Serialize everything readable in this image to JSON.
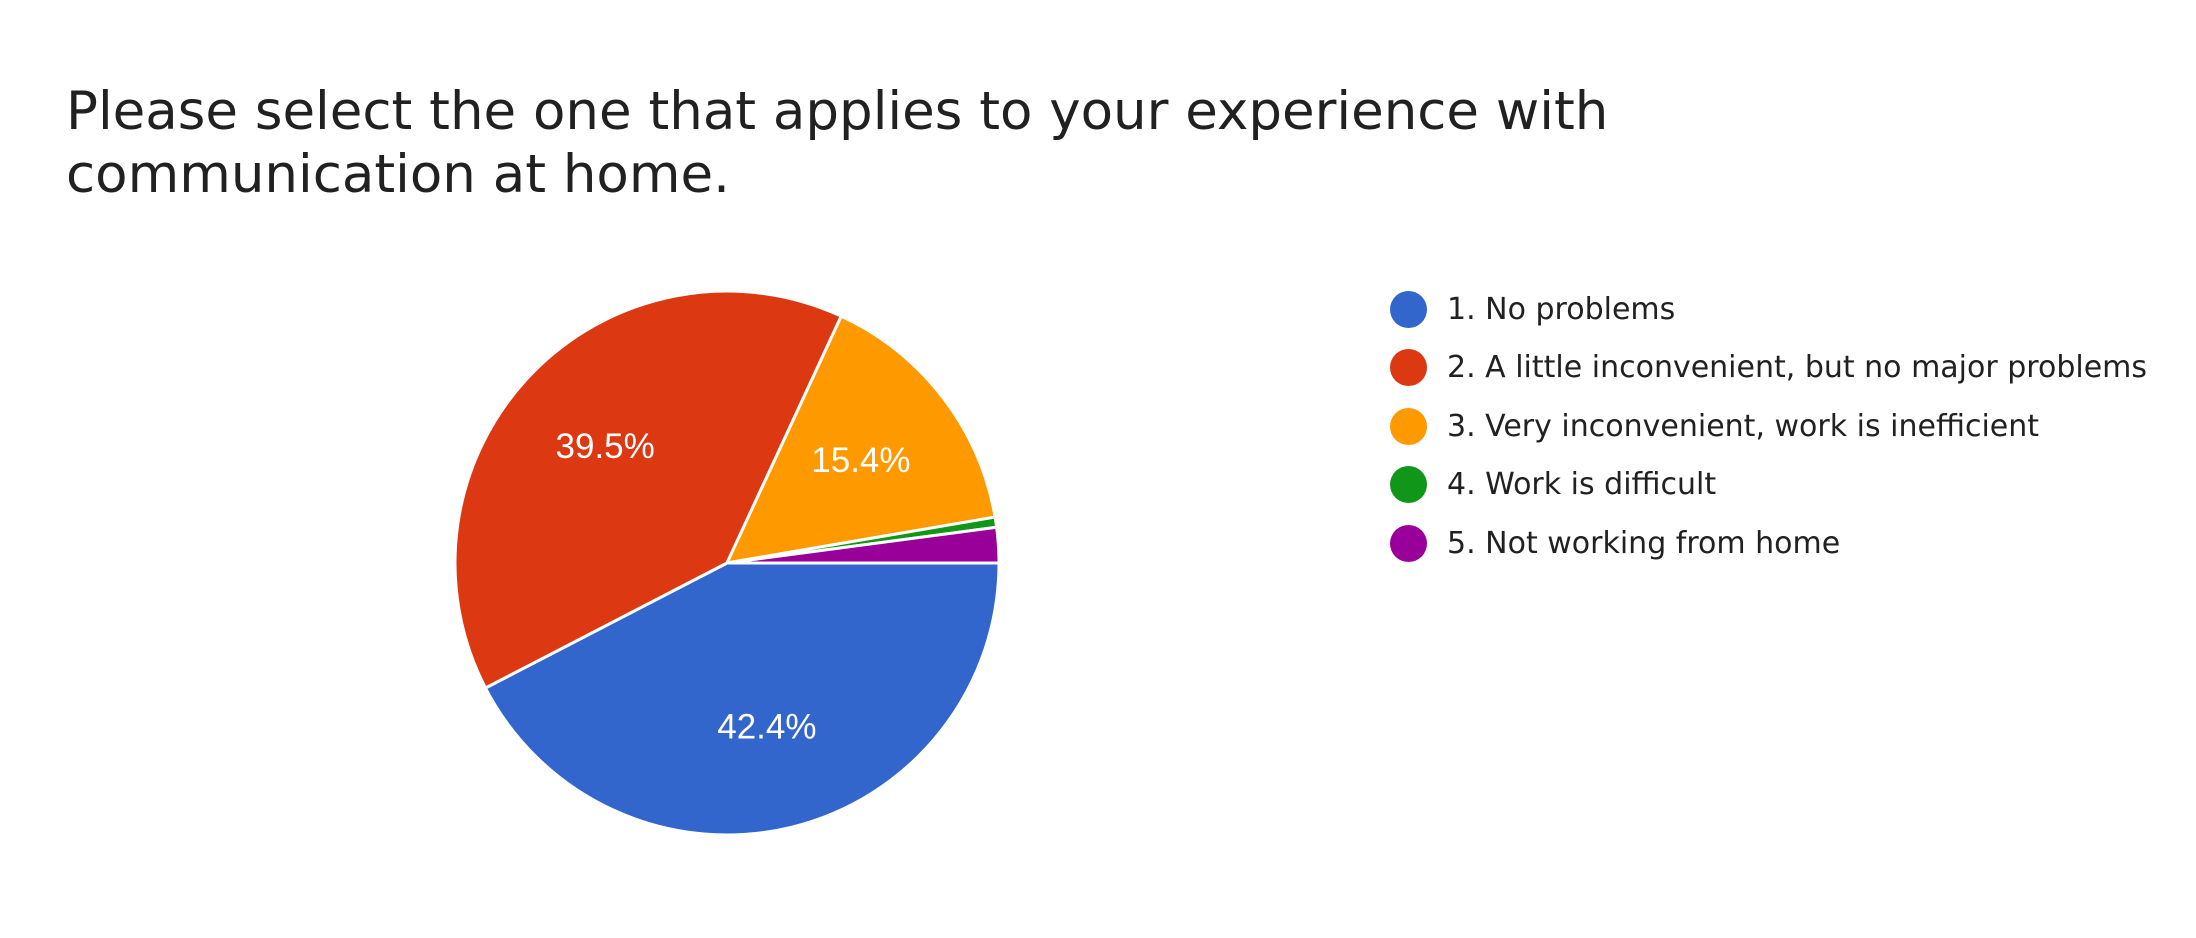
{
  "chart_data": {
    "type": "pie",
    "title": "Please select the one that applies to your experience with communication at home.",
    "slices": [
      {
        "label": "1. No problems",
        "value": 42.4,
        "display": "42.4%",
        "color": "#3366cc"
      },
      {
        "label": "2. A little inconvenient, but no major problems",
        "value": 39.5,
        "display": "39.5%",
        "color": "#dc3912"
      },
      {
        "label": "3. Very inconvenient, work is inefficient",
        "value": 15.4,
        "display": "15.4%",
        "color": "#ff9900"
      },
      {
        "label": "4. Work is difficult",
        "value": 0.6,
        "display": "",
        "color": "#109618"
      },
      {
        "label": "5. Not working from home",
        "value": 2.1,
        "display": "",
        "color": "#990099"
      }
    ],
    "legend_position": "right",
    "start_angle_note": "clockwise from 3 o'clock"
  }
}
